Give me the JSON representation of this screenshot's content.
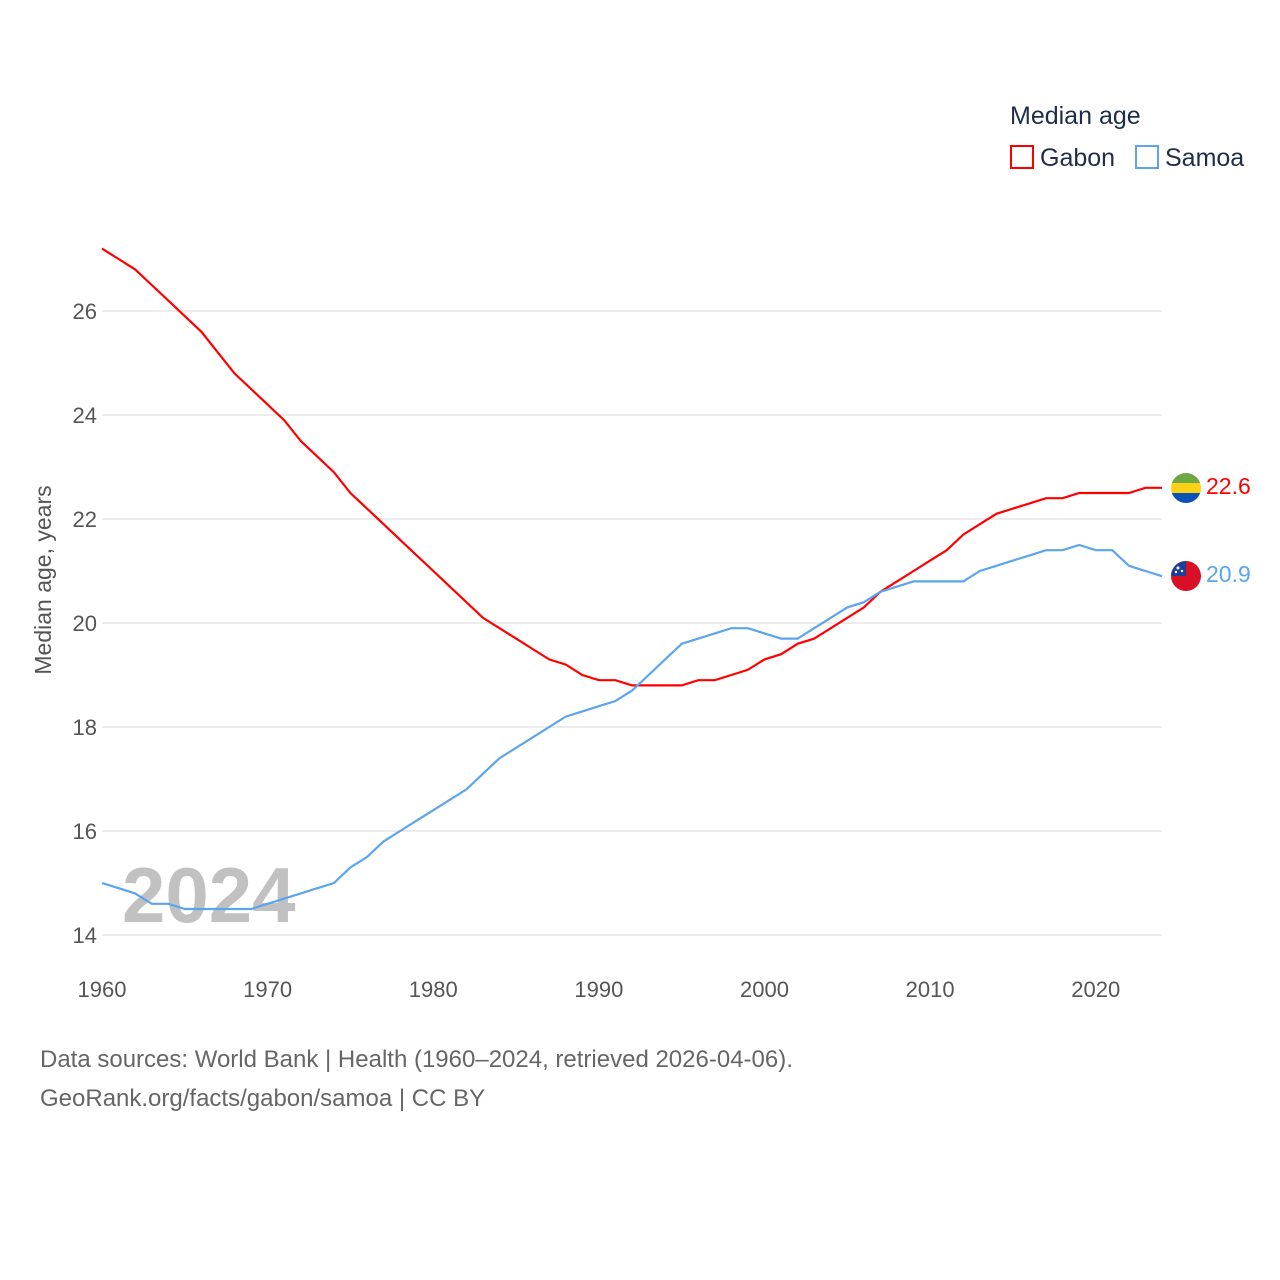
{
  "chart_data": {
    "type": "line",
    "legend_title": "Median age",
    "legend_position": "top-right",
    "ylabel": "Median age, years",
    "xlabel": "",
    "xlim": [
      1960,
      2024
    ],
    "ylim": [
      13.6,
      27.5
    ],
    "x_ticks": [
      1960,
      1970,
      1980,
      1990,
      2000,
      2010,
      2020
    ],
    "y_ticks": [
      14,
      16,
      18,
      20,
      22,
      24,
      26
    ],
    "grid": true,
    "year_watermark": "2024",
    "x_start": 1960,
    "series": [
      {
        "name": "Gabon",
        "color": "#ff0000",
        "end_label": "22.6",
        "flag": "gabon-flag",
        "values": [
          27.2,
          27.0,
          26.8,
          26.5,
          26.2,
          25.9,
          25.6,
          25.2,
          24.8,
          24.5,
          24.2,
          23.9,
          23.5,
          23.2,
          22.9,
          22.5,
          22.2,
          21.9,
          21.6,
          21.3,
          21.0,
          20.7,
          20.4,
          20.1,
          19.9,
          19.7,
          19.5,
          19.3,
          19.2,
          19.0,
          18.9,
          18.9,
          18.8,
          18.8,
          18.8,
          18.8,
          18.9,
          18.9,
          19.0,
          19.1,
          19.3,
          19.4,
          19.6,
          19.7,
          19.9,
          20.1,
          20.3,
          20.6,
          20.8,
          21.0,
          21.2,
          21.4,
          21.7,
          21.9,
          22.1,
          22.2,
          22.3,
          22.4,
          22.4,
          22.5,
          22.5,
          22.5,
          22.5,
          22.6,
          22.6
        ]
      },
      {
        "name": "Samoa",
        "color": "#5aa5ee",
        "end_label": "20.9",
        "flag": "samoa-flag",
        "values": [
          15.0,
          14.9,
          14.8,
          14.6,
          14.6,
          14.5,
          14.5,
          14.5,
          14.5,
          14.5,
          14.6,
          14.7,
          14.8,
          14.9,
          15.0,
          15.3,
          15.5,
          15.8,
          16.0,
          16.2,
          16.4,
          16.6,
          16.8,
          17.1,
          17.4,
          17.6,
          17.8,
          18.0,
          18.2,
          18.3,
          18.4,
          18.5,
          18.7,
          19.0,
          19.3,
          19.6,
          19.7,
          19.8,
          19.9,
          19.9,
          19.8,
          19.7,
          19.7,
          19.9,
          20.1,
          20.3,
          20.4,
          20.6,
          20.7,
          20.8,
          20.8,
          20.8,
          20.8,
          21.0,
          21.1,
          21.2,
          21.3,
          21.4,
          21.4,
          21.5,
          21.4,
          21.4,
          21.1,
          21.0,
          20.9
        ]
      }
    ]
  },
  "footer": {
    "source_line": "Data sources: World Bank | Health (1960–2024, retrieved 2026-04-06).",
    "credit_line": "GeoRank.org/facts/gabon/samoa | CC BY"
  }
}
